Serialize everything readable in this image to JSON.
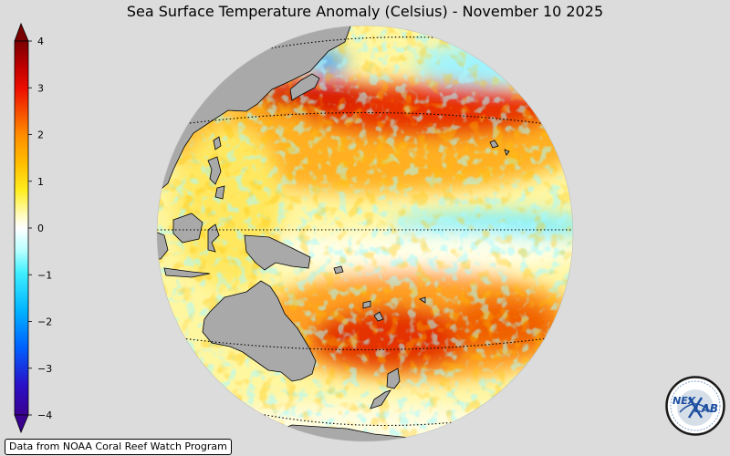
{
  "title": "Sea Surface Temperature Anomaly (Celsius) - November 10 2025",
  "colorbar": {
    "ticks": [
      "4",
      "3",
      "2",
      "1",
      "0",
      "−1",
      "−2",
      "−3",
      "−4"
    ],
    "min": -4,
    "max": 4,
    "colors": {
      "max_end": "#7a0000",
      "hot": "#d40000",
      "warm": "#ff8c00",
      "mild": "#ffe600",
      "neutral": "#ffffff",
      "cool": "#7fffff",
      "cold": "#0096ff",
      "min_end": "#3a0090"
    }
  },
  "credit": "Data from NOAA Coral Reef Watch Program",
  "logo": {
    "icon": "nexlab-logo",
    "text_left": "NEX",
    "text_right": "LAB"
  },
  "map": {
    "land_color": "#a9a9a9",
    "background": "#dcdcdc"
  }
}
